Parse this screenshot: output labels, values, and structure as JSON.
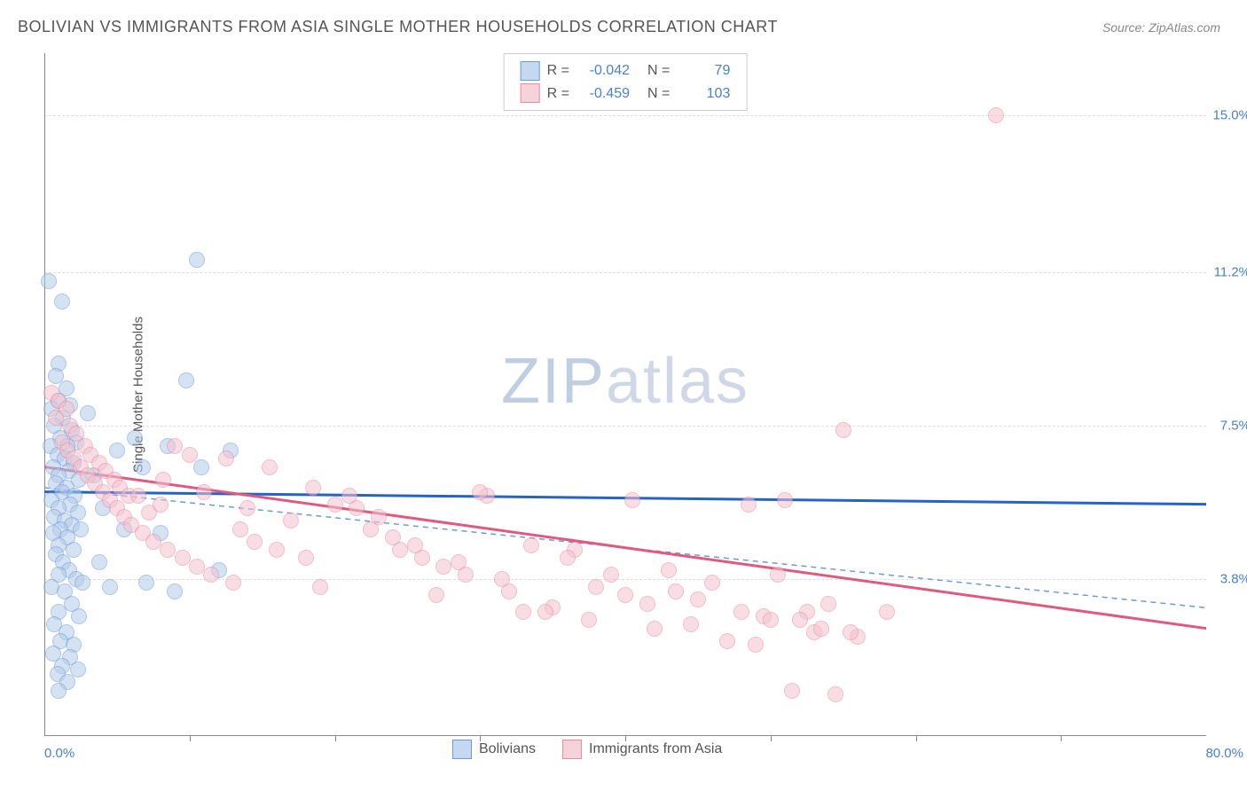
{
  "header": {
    "title": "BOLIVIAN VS IMMIGRANTS FROM ASIA SINGLE MOTHER HOUSEHOLDS CORRELATION CHART",
    "source_prefix": "Source: ",
    "source": "ZipAtlas.com"
  },
  "watermark": {
    "part1": "ZIP",
    "part2": "atlas"
  },
  "chart": {
    "type": "scatter",
    "ylabel": "Single Mother Households",
    "xlim": [
      0,
      80
    ],
    "ylim": [
      0,
      16.5
    ],
    "x_ticks": [
      0.0,
      80.0
    ],
    "x_tick_labels": [
      "0.0%",
      "80.0%"
    ],
    "x_minor_tick_positions": [
      0.125,
      0.25,
      0.375,
      0.5,
      0.625,
      0.75,
      0.875
    ],
    "y_gridlines": [
      {
        "value": 15.0,
        "label": "15.0%"
      },
      {
        "value": 11.2,
        "label": "11.2%"
      },
      {
        "value": 7.5,
        "label": "7.5%"
      },
      {
        "value": 3.8,
        "label": "3.8%"
      }
    ],
    "background_color": "#ffffff",
    "grid_color": "#dddddd",
    "axis_color": "#888888",
    "dot_radius": 9,
    "dot_border_width": 1.5,
    "series": [
      {
        "name": "Bolivians",
        "fill_color": "#b4cce9",
        "border_color": "#6a9bd8",
        "fill_opacity": 0.55,
        "legend_swatch_fill": "#c5d8f0",
        "legend_swatch_border": "#6a9bd8",
        "R": "-0.042",
        "N": "79",
        "trend": {
          "x1": 0,
          "y1": 5.9,
          "x2": 80,
          "y2": 5.6,
          "color": "#2563c9",
          "width": 3,
          "dash": "none"
        },
        "trend_aux": {
          "x1": 0,
          "y1": 6.0,
          "x2": 80,
          "y2": 3.1,
          "color": "#6a9bd8",
          "width": 1.5,
          "dash": "6,5"
        },
        "points": [
          [
            0.3,
            11.0
          ],
          [
            1.2,
            10.5
          ],
          [
            1.0,
            9.0
          ],
          [
            0.8,
            8.7
          ],
          [
            1.5,
            8.4
          ],
          [
            1.0,
            8.1
          ],
          [
            1.8,
            8.0
          ],
          [
            0.5,
            7.9
          ],
          [
            1.3,
            7.7
          ],
          [
            0.7,
            7.5
          ],
          [
            1.9,
            7.4
          ],
          [
            1.1,
            7.2
          ],
          [
            2.2,
            7.1
          ],
          [
            0.4,
            7.0
          ],
          [
            1.6,
            7.0
          ],
          [
            0.9,
            6.8
          ],
          [
            1.4,
            6.7
          ],
          [
            2.0,
            6.6
          ],
          [
            0.6,
            6.5
          ],
          [
            1.7,
            6.4
          ],
          [
            1.0,
            6.3
          ],
          [
            2.4,
            6.2
          ],
          [
            0.8,
            6.1
          ],
          [
            1.5,
            6.0
          ],
          [
            1.2,
            5.9
          ],
          [
            2.1,
            5.8
          ],
          [
            0.5,
            5.7
          ],
          [
            1.8,
            5.6
          ],
          [
            1.0,
            5.5
          ],
          [
            2.3,
            5.4
          ],
          [
            0.7,
            5.3
          ],
          [
            1.4,
            5.2
          ],
          [
            1.9,
            5.1
          ],
          [
            1.1,
            5.0
          ],
          [
            2.5,
            5.0
          ],
          [
            0.6,
            4.9
          ],
          [
            1.6,
            4.8
          ],
          [
            1.0,
            4.6
          ],
          [
            2.0,
            4.5
          ],
          [
            0.8,
            4.4
          ],
          [
            1.3,
            4.2
          ],
          [
            1.7,
            4.0
          ],
          [
            1.0,
            3.9
          ],
          [
            2.2,
            3.8
          ],
          [
            0.5,
            3.6
          ],
          [
            1.4,
            3.5
          ],
          [
            1.9,
            3.2
          ],
          [
            1.0,
            3.0
          ],
          [
            2.4,
            2.9
          ],
          [
            0.7,
            2.7
          ],
          [
            1.5,
            2.5
          ],
          [
            1.1,
            2.3
          ],
          [
            2.0,
            2.2
          ],
          [
            0.6,
            2.0
          ],
          [
            1.8,
            1.9
          ],
          [
            1.2,
            1.7
          ],
          [
            2.3,
            1.6
          ],
          [
            0.9,
            1.5
          ],
          [
            1.6,
            1.3
          ],
          [
            1.0,
            1.1
          ],
          [
            2.6,
            3.7
          ],
          [
            3.4,
            6.3
          ],
          [
            3.0,
            7.8
          ],
          [
            4.0,
            5.5
          ],
          [
            3.8,
            4.2
          ],
          [
            5.0,
            6.9
          ],
          [
            4.5,
            3.6
          ],
          [
            6.2,
            7.2
          ],
          [
            5.5,
            5.0
          ],
          [
            7.0,
            3.7
          ],
          [
            6.8,
            6.5
          ],
          [
            8.0,
            4.9
          ],
          [
            8.5,
            7.0
          ],
          [
            9.0,
            3.5
          ],
          [
            9.8,
            8.6
          ],
          [
            10.5,
            11.5
          ],
          [
            10.8,
            6.5
          ],
          [
            12.0,
            4.0
          ],
          [
            12.8,
            6.9
          ]
        ]
      },
      {
        "name": "Immigrants from Asia",
        "fill_color": "#f3c3cf",
        "border_color": "#e98aa3",
        "fill_opacity": 0.55,
        "legend_swatch_fill": "#f6d2db",
        "legend_swatch_border": "#e98aa3",
        "R": "-0.459",
        "N": "103",
        "trend": {
          "x1": 0,
          "y1": 6.5,
          "x2": 80,
          "y2": 2.6,
          "color": "#e15a7e",
          "width": 3,
          "dash": "none"
        },
        "points": [
          [
            0.5,
            8.3
          ],
          [
            1.0,
            8.1
          ],
          [
            1.5,
            7.9
          ],
          [
            0.8,
            7.7
          ],
          [
            1.8,
            7.5
          ],
          [
            2.2,
            7.3
          ],
          [
            1.2,
            7.1
          ],
          [
            2.8,
            7.0
          ],
          [
            1.6,
            6.9
          ],
          [
            3.2,
            6.8
          ],
          [
            2.0,
            6.7
          ],
          [
            3.8,
            6.6
          ],
          [
            2.5,
            6.5
          ],
          [
            4.2,
            6.4
          ],
          [
            3.0,
            6.3
          ],
          [
            4.8,
            6.2
          ],
          [
            3.5,
            6.1
          ],
          [
            5.2,
            6.0
          ],
          [
            4.0,
            5.9
          ],
          [
            5.8,
            5.8
          ],
          [
            4.5,
            5.7
          ],
          [
            6.5,
            5.8
          ],
          [
            5.0,
            5.5
          ],
          [
            7.2,
            5.4
          ],
          [
            5.5,
            5.3
          ],
          [
            8.0,
            5.6
          ],
          [
            6.0,
            5.1
          ],
          [
            9.0,
            7.0
          ],
          [
            6.8,
            4.9
          ],
          [
            10.0,
            6.8
          ],
          [
            7.5,
            4.7
          ],
          [
            11.0,
            5.9
          ],
          [
            8.5,
            4.5
          ],
          [
            12.5,
            6.7
          ],
          [
            9.5,
            4.3
          ],
          [
            14.0,
            5.5
          ],
          [
            10.5,
            4.1
          ],
          [
            15.5,
            6.5
          ],
          [
            11.5,
            3.9
          ],
          [
            17.0,
            5.2
          ],
          [
            13.0,
            3.7
          ],
          [
            18.5,
            6.0
          ],
          [
            14.5,
            4.7
          ],
          [
            20.0,
            5.6
          ],
          [
            16.0,
            4.5
          ],
          [
            21.5,
            5.5
          ],
          [
            18.0,
            4.3
          ],
          [
            23.0,
            5.3
          ],
          [
            19.0,
            3.6
          ],
          [
            24.5,
            4.5
          ],
          [
            21.0,
            5.8
          ],
          [
            26.0,
            4.3
          ],
          [
            22.5,
            5.0
          ],
          [
            27.5,
            4.1
          ],
          [
            24.0,
            4.8
          ],
          [
            29.0,
            3.9
          ],
          [
            25.5,
            4.6
          ],
          [
            30.5,
            5.8
          ],
          [
            27.0,
            3.4
          ],
          [
            32.0,
            3.5
          ],
          [
            28.5,
            4.2
          ],
          [
            33.5,
            4.6
          ],
          [
            30.0,
            5.9
          ],
          [
            35.0,
            3.1
          ],
          [
            31.5,
            3.8
          ],
          [
            36.5,
            4.5
          ],
          [
            33.0,
            3.0
          ],
          [
            38.0,
            3.6
          ],
          [
            34.5,
            3.0
          ],
          [
            40.0,
            3.4
          ],
          [
            36.0,
            4.3
          ],
          [
            41.5,
            3.2
          ],
          [
            37.5,
            2.8
          ],
          [
            43.0,
            4.0
          ],
          [
            39.0,
            3.9
          ],
          [
            44.5,
            2.7
          ],
          [
            40.5,
            5.7
          ],
          [
            46.0,
            3.7
          ],
          [
            42.0,
            2.6
          ],
          [
            48.0,
            3.0
          ],
          [
            43.5,
            3.5
          ],
          [
            49.5,
            2.9
          ],
          [
            45.0,
            3.3
          ],
          [
            51.0,
            5.7
          ],
          [
            47.0,
            2.3
          ],
          [
            52.5,
            3.0
          ],
          [
            48.5,
            5.6
          ],
          [
            53.0,
            2.5
          ],
          [
            50.0,
            2.8
          ],
          [
            51.5,
            1.1
          ],
          [
            53.5,
            2.6
          ],
          [
            55.0,
            7.4
          ],
          [
            56.0,
            2.4
          ],
          [
            52.0,
            2.8
          ],
          [
            50.5,
            3.9
          ],
          [
            54.5,
            1.0
          ],
          [
            49.0,
            2.2
          ],
          [
            58.0,
            3.0
          ],
          [
            54.0,
            3.2
          ],
          [
            55.5,
            2.5
          ],
          [
            65.5,
            15.0
          ],
          [
            8.2,
            6.2
          ],
          [
            13.5,
            5.0
          ]
        ]
      }
    ],
    "legend_labels": {
      "R": "R =",
      "N": "N ="
    }
  }
}
